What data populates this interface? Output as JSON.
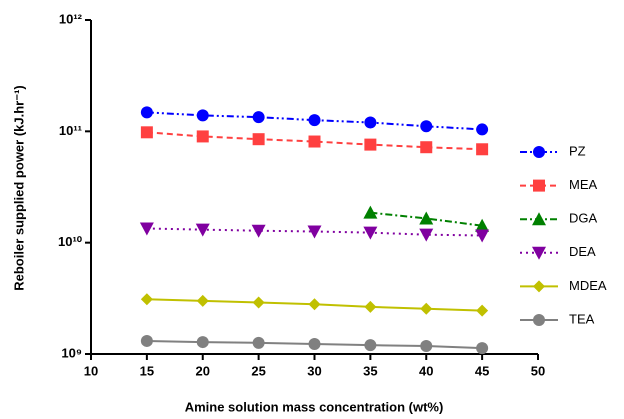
{
  "chart_data": {
    "type": "line",
    "xlabel": "Amine solution mass concentration (wt%)",
    "ylabel": "Reboiler supplied power (kJ.hr⁻¹)",
    "x": [
      15,
      20,
      25,
      30,
      35,
      40,
      45
    ],
    "xlim": [
      10,
      50
    ],
    "xticks": [
      10,
      15,
      20,
      25,
      30,
      35,
      40,
      45,
      50
    ],
    "ylim": [
      1000000000,
      1000000000000
    ],
    "yscale": "log",
    "yticks": [
      {
        "value": 1000000000,
        "label": "10⁹"
      },
      {
        "value": 10000000000,
        "label": "10¹⁰"
      },
      {
        "value": 100000000000,
        "label": "10¹¹"
      },
      {
        "value": 1000000000000,
        "label": "10¹²"
      }
    ],
    "legend": "right",
    "series": [
      {
        "name": "PZ",
        "color": "#0000ff",
        "marker": "circle",
        "dash": "dash-dot-dot",
        "values": [
          148000000000,
          139000000000,
          134000000000,
          126000000000,
          120000000000,
          111000000000,
          104000000000
        ]
      },
      {
        "name": "MEA",
        "color": "#ff4040",
        "marker": "square",
        "dash": "dash",
        "values": [
          98000000000,
          90000000000,
          85000000000,
          81000000000,
          76000000000,
          72000000000,
          69000000000
        ]
      },
      {
        "name": "DGA",
        "color": "#008000",
        "marker": "triangle-up",
        "dash": "dash-dot",
        "values": [
          null,
          null,
          null,
          null,
          18600000000,
          16500000000,
          14200000000
        ]
      },
      {
        "name": "DEA",
        "color": "#8000a0",
        "marker": "triangle-down",
        "dash": "dot",
        "values": [
          13400000000,
          13100000000,
          12800000000,
          12600000000,
          12300000000,
          11800000000,
          11600000000
        ]
      },
      {
        "name": "MDEA",
        "color": "#c0c000",
        "marker": "diamond",
        "dash": "solid",
        "values": [
          3100000000,
          3000000000,
          2900000000,
          2800000000,
          2650000000,
          2550000000,
          2450000000
        ]
      },
      {
        "name": "TEA",
        "color": "#808080",
        "marker": "circle",
        "dash": "solid",
        "values": [
          1310000000,
          1280000000,
          1260000000,
          1230000000,
          1200000000,
          1180000000,
          1130000000
        ]
      }
    ]
  }
}
